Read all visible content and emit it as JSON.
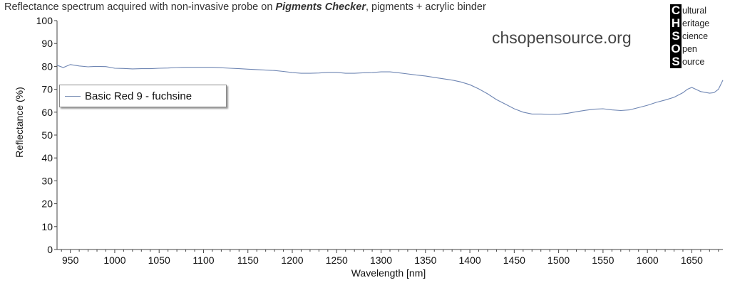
{
  "title": {
    "prefix": "Reflectance spectrum acquired with non-invasive probe on ",
    "emphasis": "Pigments Checker",
    "suffix": ", pigments + acrylic binder"
  },
  "watermark": "chsopensource.org",
  "logo": {
    "rows": [
      {
        "cap": "C",
        "rest": "ultural"
      },
      {
        "cap": "H",
        "rest": "eritage"
      },
      {
        "cap": "S",
        "rest": "cience"
      },
      {
        "cap": "O",
        "rest": "pen"
      },
      {
        "cap": "S",
        "rest": "ource"
      }
    ]
  },
  "legend": {
    "label": "Basic Red 9 - fuchsine"
  },
  "colors": {
    "series": "#6f86b3",
    "axis": "#444444",
    "background": "#ffffff"
  },
  "chart_data": {
    "type": "line",
    "xlabel": "Wavelength [nm]",
    "ylabel": "Reflectance (%)",
    "xlim": [
      935,
      1685
    ],
    "ylim": [
      0,
      100
    ],
    "xticks": [
      950,
      1000,
      1050,
      1100,
      1150,
      1200,
      1250,
      1300,
      1350,
      1400,
      1450,
      1500,
      1550,
      1600,
      1650
    ],
    "yticks": [
      0,
      10,
      20,
      30,
      40,
      50,
      60,
      70,
      80,
      90,
      100
    ],
    "grid": false,
    "legend_position": "top-left",
    "series": [
      {
        "name": "Basic Red 9 - fuchsine",
        "x": [
          935,
          942,
          950,
          960,
          970,
          978,
          990,
          1000,
          1010,
          1020,
          1030,
          1040,
          1050,
          1060,
          1070,
          1080,
          1090,
          1100,
          1110,
          1120,
          1130,
          1140,
          1150,
          1160,
          1170,
          1180,
          1190,
          1200,
          1210,
          1220,
          1230,
          1240,
          1250,
          1260,
          1270,
          1280,
          1290,
          1300,
          1310,
          1320,
          1330,
          1340,
          1350,
          1360,
          1370,
          1380,
          1390,
          1400,
          1410,
          1420,
          1430,
          1440,
          1450,
          1460,
          1470,
          1480,
          1490,
          1500,
          1510,
          1520,
          1530,
          1540,
          1550,
          1560,
          1570,
          1580,
          1590,
          1600,
          1610,
          1620,
          1630,
          1640,
          1645,
          1650,
          1660,
          1670,
          1675,
          1680,
          1685
        ],
        "y": [
          80.5,
          79.5,
          80.8,
          80.2,
          79.8,
          80.0,
          79.9,
          79.2,
          79.1,
          78.9,
          79.0,
          79.0,
          79.2,
          79.3,
          79.5,
          79.6,
          79.6,
          79.6,
          79.6,
          79.4,
          79.2,
          79.0,
          78.8,
          78.6,
          78.4,
          78.2,
          77.8,
          77.3,
          77.0,
          77.0,
          77.1,
          77.4,
          77.4,
          77.0,
          77.0,
          77.2,
          77.3,
          77.6,
          77.6,
          77.2,
          76.7,
          76.2,
          75.8,
          75.2,
          74.6,
          74.0,
          73.2,
          72.0,
          70.2,
          68.0,
          65.5,
          63.5,
          61.5,
          60.0,
          59.2,
          59.2,
          59.0,
          59.1,
          59.5,
          60.2,
          60.8,
          61.3,
          61.5,
          61.0,
          60.7,
          61.0,
          62.0,
          63.0,
          64.3,
          65.3,
          66.5,
          68.5,
          70.0,
          70.8,
          69.0,
          68.3,
          68.5,
          70.0,
          74.0
        ]
      }
    ]
  }
}
